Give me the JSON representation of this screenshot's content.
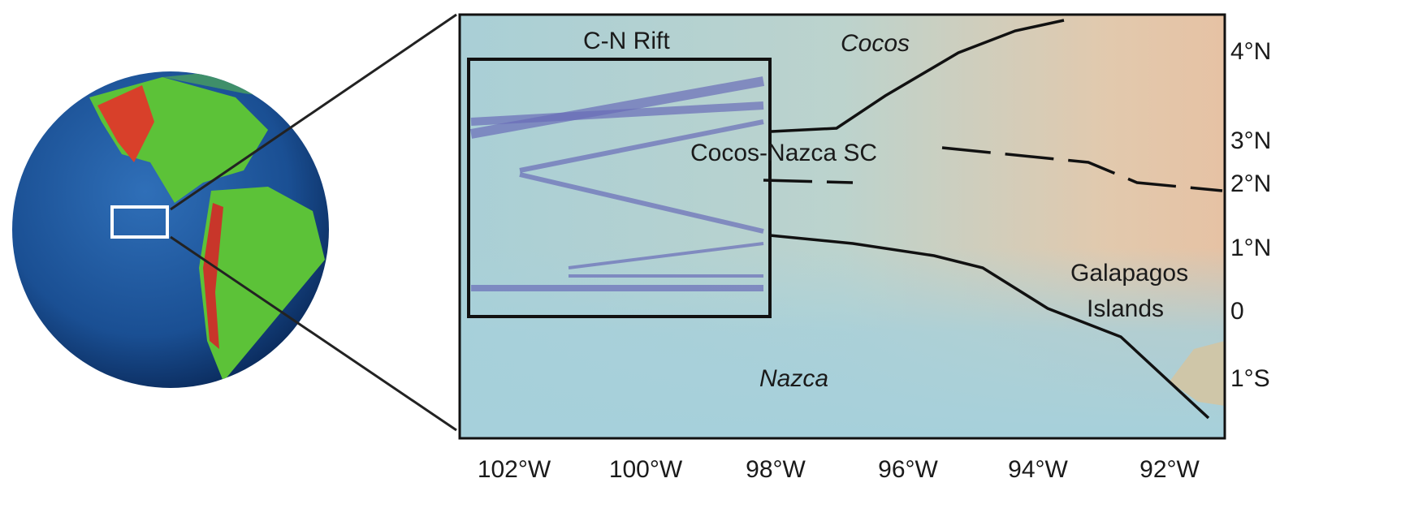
{
  "map": {
    "labels": [
      "C-N Rift",
      "Cocos",
      "Cocos-Nazca SC",
      "Galapagos",
      "Islands",
      "Nazca"
    ],
    "x_axis_labels": [
      "102°W",
      "100°W",
      "98°W",
      "96°W",
      "94°W",
      "92°W"
    ],
    "y_axis_labels": [
      "4°N",
      "3°N",
      "2°N",
      "1°N",
      "0",
      "1°S"
    ]
  }
}
